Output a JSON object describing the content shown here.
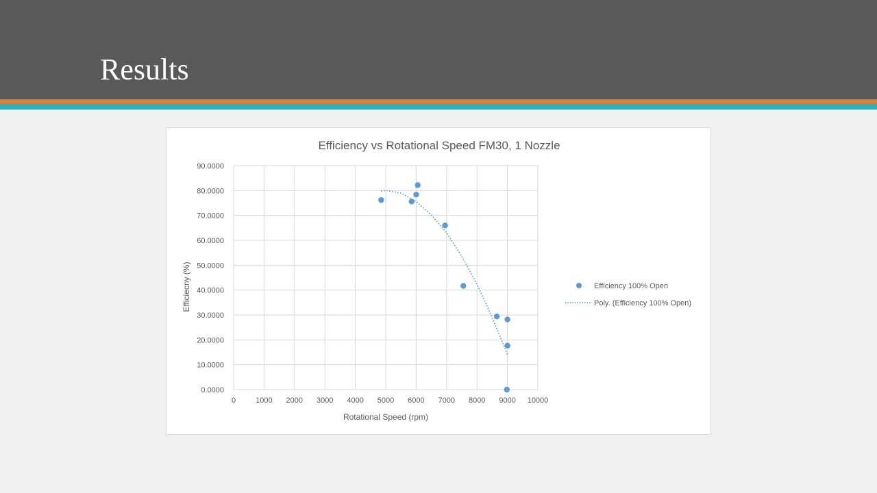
{
  "slide": {
    "title": "Results"
  },
  "colors": {
    "header": "#595959",
    "stripe_orange": "#e97d2b",
    "stripe_teal": "#2ab2bd",
    "series": "#5b9bd5"
  },
  "chart_data": {
    "type": "scatter",
    "title": "Efficiency vs Rotational Speed FM30, 1 Nozzle",
    "xlabel": "Rotational Speed (rpm)",
    "ylabel": "Efficiecny (%)",
    "xlim": [
      0,
      10000
    ],
    "ylim": [
      0,
      90
    ],
    "x_ticks": [
      "0",
      "1000",
      "2000",
      "3000",
      "4000",
      "5000",
      "6000",
      "7000",
      "8000",
      "9000",
      "10000"
    ],
    "y_ticks": [
      "0.0000",
      "10.0000",
      "20.0000",
      "30.0000",
      "40.0000",
      "50.0000",
      "60.0000",
      "70.0000",
      "80.0000",
      "90.0000"
    ],
    "grid": true,
    "legend_position": "right",
    "series": [
      {
        "name": "Efficiency 100% Open",
        "marker": "circle",
        "color": "#5b9bd5",
        "points": [
          {
            "x": 4850,
            "y": 76.2
          },
          {
            "x": 5850,
            "y": 75.6
          },
          {
            "x": 6000,
            "y": 78.4
          },
          {
            "x": 6050,
            "y": 82.2
          },
          {
            "x": 6950,
            "y": 66.0
          },
          {
            "x": 7550,
            "y": 41.7
          },
          {
            "x": 8650,
            "y": 29.4
          },
          {
            "x": 9000,
            "y": 28.2
          },
          {
            "x": 9000,
            "y": 17.7
          },
          {
            "x": 8980,
            "y": 0.0
          }
        ]
      }
    ],
    "trendline": {
      "name": "Poly. (Efficiency 100% Open)",
      "style": "dotted",
      "color": "#5b9bd5",
      "points": [
        {
          "x": 4850,
          "y": 79.8
        },
        {
          "x": 5000,
          "y": 80.1
        },
        {
          "x": 5500,
          "y": 79.0
        },
        {
          "x": 6000,
          "y": 75.6
        },
        {
          "x": 6500,
          "y": 70.2
        },
        {
          "x": 7000,
          "y": 63.0
        },
        {
          "x": 7500,
          "y": 53.6
        },
        {
          "x": 8000,
          "y": 42.3
        },
        {
          "x": 8500,
          "y": 29.0
        },
        {
          "x": 9000,
          "y": 14.0
        }
      ]
    }
  }
}
